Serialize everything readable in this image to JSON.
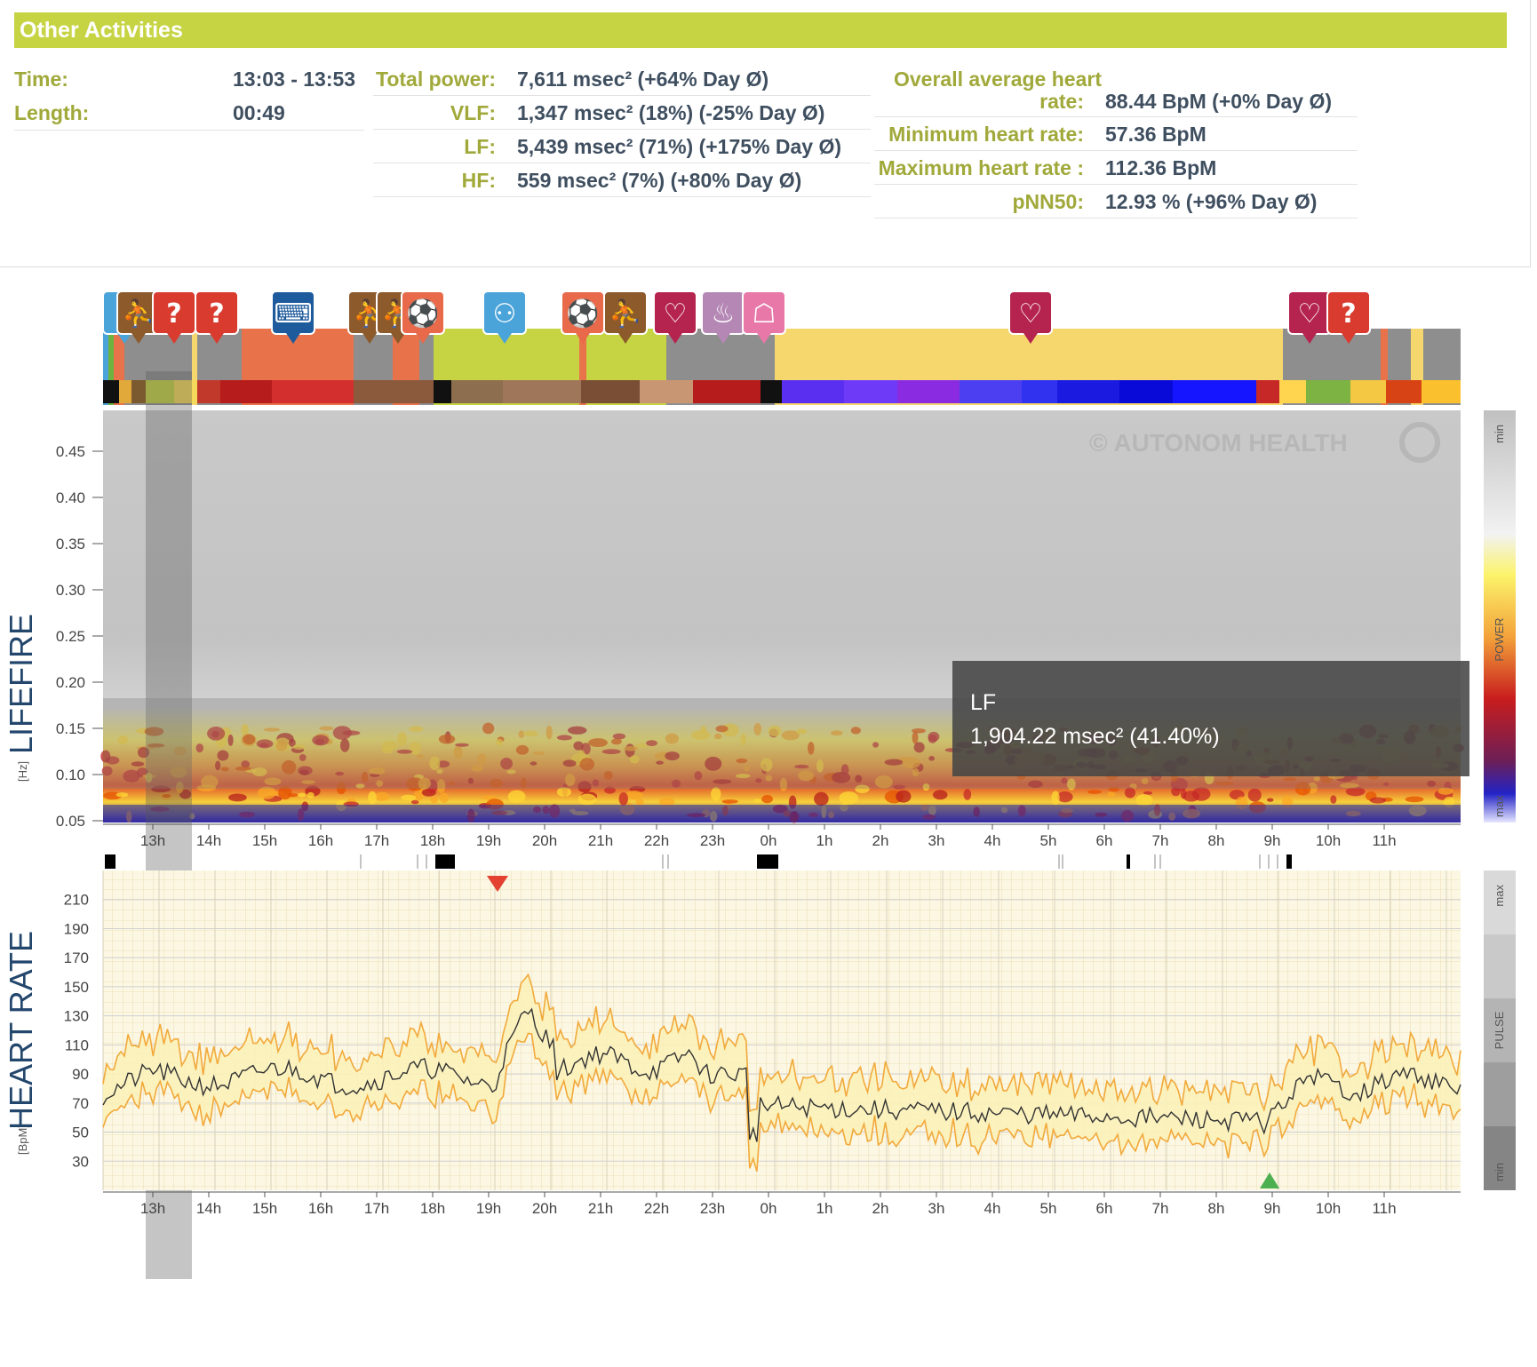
{
  "panel": {
    "title": "Other Activities",
    "left": [
      {
        "label": "Time:",
        "value": "13:03 - 13:53"
      },
      {
        "label": "Length:",
        "value": "00:49"
      }
    ],
    "middle": [
      {
        "label": "Total power:",
        "value": "7,611 msec² (+64% Day Ø)"
      },
      {
        "label": "VLF:",
        "value": "1,347 msec² (18%) (-25% Day Ø)"
      },
      {
        "label": "LF:",
        "value": "5,439 msec² (71%) (+175% Day Ø)"
      },
      {
        "label": "HF:",
        "value": "559 msec² (7%) (+80% Day Ø)"
      }
    ],
    "right": {
      "avg_label_1": "Overall average heart",
      "avg_label_2": "rate:",
      "avg_value": "88.44 BpM (+0% Day Ø)",
      "rows": [
        {
          "label": "Minimum heart rate:",
          "value": "57.36 BpM"
        },
        {
          "label": "Maximum heart rate :",
          "value": "112.36 BpM"
        },
        {
          "label": "pNN50:",
          "value": "12.93 % (+96% Day Ø)"
        }
      ]
    }
  },
  "lifefire": {
    "title": "LIFEFIRE",
    "unit": "[Hz]",
    "yticks": [
      "0.45",
      "0.40",
      "0.35",
      "0.30",
      "0.25",
      "0.20",
      "0.15",
      "0.10",
      "0.05"
    ],
    "legend_min": "min",
    "legend_mid": "POWER",
    "legend_max": "max",
    "watermark": "© AUTONOM HEALTH"
  },
  "tooltip": {
    "name": "LF",
    "value": "1,904.22 msec² (41.40%)"
  },
  "hours": [
    "13h",
    "14h",
    "15h",
    "16h",
    "17h",
    "18h",
    "19h",
    "20h",
    "21h",
    "22h",
    "23h",
    "0h",
    "1h",
    "2h",
    "3h",
    "4h",
    "5h",
    "6h",
    "7h",
    "8h",
    "9h",
    "10h",
    "11h"
  ],
  "heartrate": {
    "title": "HEART RATE",
    "unit": "[BpM]",
    "yticks": [
      "210",
      "190",
      "170",
      "150",
      "130",
      "110",
      "90",
      "70",
      "50",
      "30"
    ],
    "legend_max": "max",
    "legend_mid": "PULSE",
    "legend_min": "min"
  },
  "activity_icons": [
    {
      "name": "info",
      "color": "#4aa3d9"
    },
    {
      "name": "running",
      "color": "#8c5a2b"
    },
    {
      "name": "question",
      "color": "#d93b2f"
    },
    {
      "name": "question",
      "color": "#d93b2f"
    },
    {
      "name": "keyboard",
      "color": "#1e5b9c"
    },
    {
      "name": "running",
      "color": "#8c5a2b"
    },
    {
      "name": "running",
      "color": "#8c5a2b"
    },
    {
      "name": "ball",
      "color": "#e86a4a"
    },
    {
      "name": "meeting",
      "color": "#4aa3d9"
    },
    {
      "name": "ball",
      "color": "#e86a4a"
    },
    {
      "name": "running",
      "color": "#8c5a2b"
    },
    {
      "name": "heart",
      "color": "#b5234f"
    },
    {
      "name": "bath",
      "color": "#b587b5"
    },
    {
      "name": "bed",
      "color": "#e778a8"
    },
    {
      "name": "heart",
      "color": "#b5234f"
    },
    {
      "name": "heart",
      "color": "#b5234f"
    },
    {
      "name": "question",
      "color": "#d93b2f"
    }
  ],
  "colors": {
    "banner": "#c6d443",
    "label": "#a0a93a",
    "value": "#3f4f60",
    "grey_activity": "#8e8e8e",
    "orange_activity": "#e8734a",
    "green_activity": "#c6d443",
    "sleep_activity": "#f5d76e",
    "hr_band": "#f2a93b"
  }
}
